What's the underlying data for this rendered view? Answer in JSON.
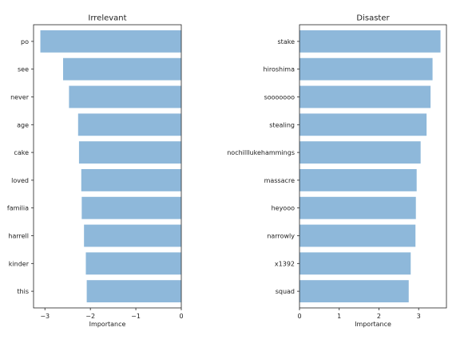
{
  "chart_data": [
    {
      "type": "bar",
      "orientation": "horizontal",
      "title": "Irrelevant",
      "xlabel": "Importance",
      "ylabel": "",
      "xlim": [
        -3.25,
        0
      ],
      "xticks": [
        -3,
        -2,
        -1,
        0
      ],
      "xtick_labels": [
        "−3",
        "−2",
        "−1",
        "0"
      ],
      "categories": [
        "po",
        "see",
        "never",
        "age",
        "cake",
        "loved",
        "familia",
        "harrell",
        "kinder",
        "this"
      ],
      "values": [
        -3.1,
        -2.6,
        -2.47,
        -2.27,
        -2.25,
        -2.2,
        -2.19,
        -2.14,
        -2.1,
        -2.08
      ],
      "bar_color": "#8eb8da",
      "grid": false
    },
    {
      "type": "bar",
      "orientation": "horizontal",
      "title": "Disaster",
      "xlabel": "Importance",
      "ylabel": "",
      "xlim": [
        0,
        3.7
      ],
      "xticks": [
        0,
        1,
        2,
        3
      ],
      "xtick_labels": [
        "0",
        "1",
        "2",
        "3"
      ],
      "categories": [
        "stake",
        "hiroshima",
        "sooooooo",
        "stealing",
        "nochilllukehammings",
        "massacre",
        "heyooo",
        "narrowly",
        "x1392",
        "squad"
      ],
      "values": [
        3.55,
        3.35,
        3.3,
        3.2,
        3.05,
        2.95,
        2.93,
        2.92,
        2.8,
        2.75
      ],
      "bar_color": "#8eb8da",
      "grid": false
    }
  ]
}
